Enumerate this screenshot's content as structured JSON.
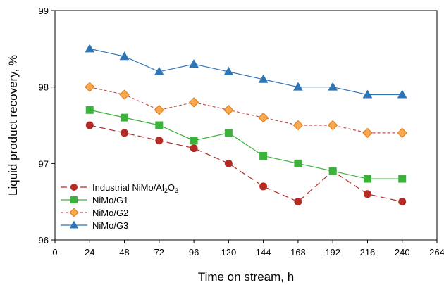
{
  "chart_data": {
    "type": "line",
    "title": "",
    "xlabel": "Time on stream, h",
    "ylabel": "Liquid product recovery, %",
    "xlim": [
      0,
      264
    ],
    "ylim": [
      96,
      99
    ],
    "xticks": [
      0,
      24,
      48,
      72,
      96,
      120,
      144,
      168,
      192,
      216,
      240,
      264
    ],
    "yticks": [
      96,
      97,
      98,
      99
    ],
    "grid": false,
    "legend_position": "bottom-left",
    "x": [
      24,
      48,
      72,
      96,
      120,
      144,
      168,
      192,
      216,
      240
    ],
    "series": [
      {
        "name": "Industrial NiMo/Al₂O₃",
        "legend_parts": [
          "Industrial NiMo/Al",
          "2",
          "O",
          "3"
        ],
        "color": "#b52a25",
        "marker": "circle",
        "line_style": "long-dash",
        "values": [
          97.5,
          97.4,
          97.3,
          97.2,
          97.0,
          96.7,
          96.5,
          96.9,
          96.6,
          96.5
        ]
      },
      {
        "name": "NiMo/G1",
        "legend_parts": [
          "NiMo/G1"
        ],
        "color": "#3bb33b",
        "marker": "square",
        "line_style": "solid",
        "values": [
          97.7,
          97.6,
          97.5,
          97.3,
          97.4,
          97.1,
          97.0,
          96.9,
          96.8,
          96.8
        ]
      },
      {
        "name": "NiMo/G2",
        "legend_parts": [
          "NiMo/G2"
        ],
        "color": "#c0504d",
        "marker_fill": "#f9a94b",
        "marker_edge": "#e07b1a",
        "marker": "diamond",
        "line_style": "short-dash",
        "values": [
          98.0,
          97.9,
          97.7,
          97.8,
          97.7,
          97.6,
          97.5,
          97.5,
          97.4,
          97.4
        ]
      },
      {
        "name": "NiMo/G3",
        "legend_parts": [
          "NiMo/G3"
        ],
        "color": "#2e75b6",
        "marker": "triangle",
        "line_style": "solid",
        "values": [
          98.5,
          98.4,
          98.2,
          98.3,
          98.2,
          98.1,
          98.0,
          98.0,
          97.9,
          97.9
        ]
      }
    ]
  }
}
